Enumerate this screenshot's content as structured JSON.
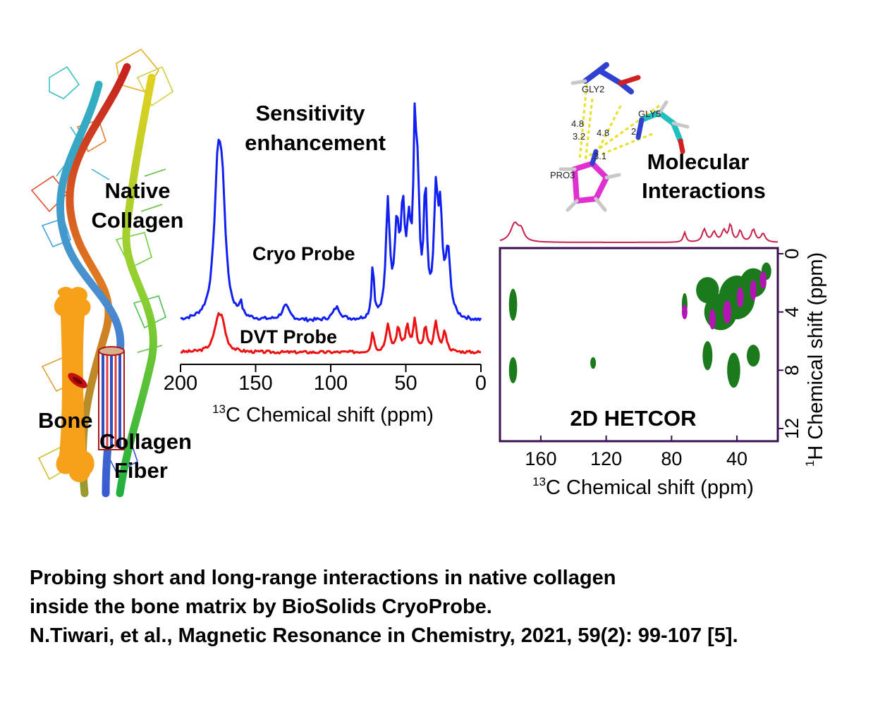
{
  "panels": {
    "collagen": {
      "native_label_line1": "Native",
      "native_label_line2": "Collagen",
      "bone_label": "Bone",
      "fiber_label_line1": "Collagen",
      "fiber_label_line2": "Fiber"
    },
    "spectra": {
      "title_line1": "Sensitivity",
      "title_line2": "enhancement",
      "cryo_label": "Cryo Probe",
      "dvt_label": "DVT Probe",
      "x_ticks": [
        "200",
        "150",
        "100",
        "50",
        "0"
      ],
      "x_label_sup": "13",
      "x_label": "C Chemical shift (ppm)",
      "cryo_color": "#1020f0",
      "dvt_color": "#ee1111"
    },
    "molecule": {
      "title_line1": "Molecular",
      "title_line2": "Interactions",
      "residues": [
        "GLY2",
        "GLY5",
        "PRO3"
      ],
      "distances": [
        "4.8",
        "3.2",
        "4.8",
        "2.",
        "3.1"
      ]
    },
    "hetcor": {
      "label": "2D HETCOR",
      "x_ticks": [
        "160",
        "120",
        "80",
        "40"
      ],
      "y_ticks": [
        "0",
        "4",
        "8",
        "12"
      ],
      "x_label_sup": "13",
      "x_label": "C Chemical shift (ppm)",
      "y_label_sup": "1",
      "y_label": "H Chemical shift (ppm)",
      "projection_color": "#c8204a",
      "contour_green": "#1b7a1b",
      "contour_magenta": "#b314b3"
    }
  },
  "caption": {
    "line1": "Probing short and long-range interactions in native collagen",
    "line2": "inside the bone matrix by BioSolids CryoProbe.",
    "line3": "N.Tiwari, et al., Magnetic Resonance in Chemistry, 2021, 59(2): 99-107 [5]."
  }
}
